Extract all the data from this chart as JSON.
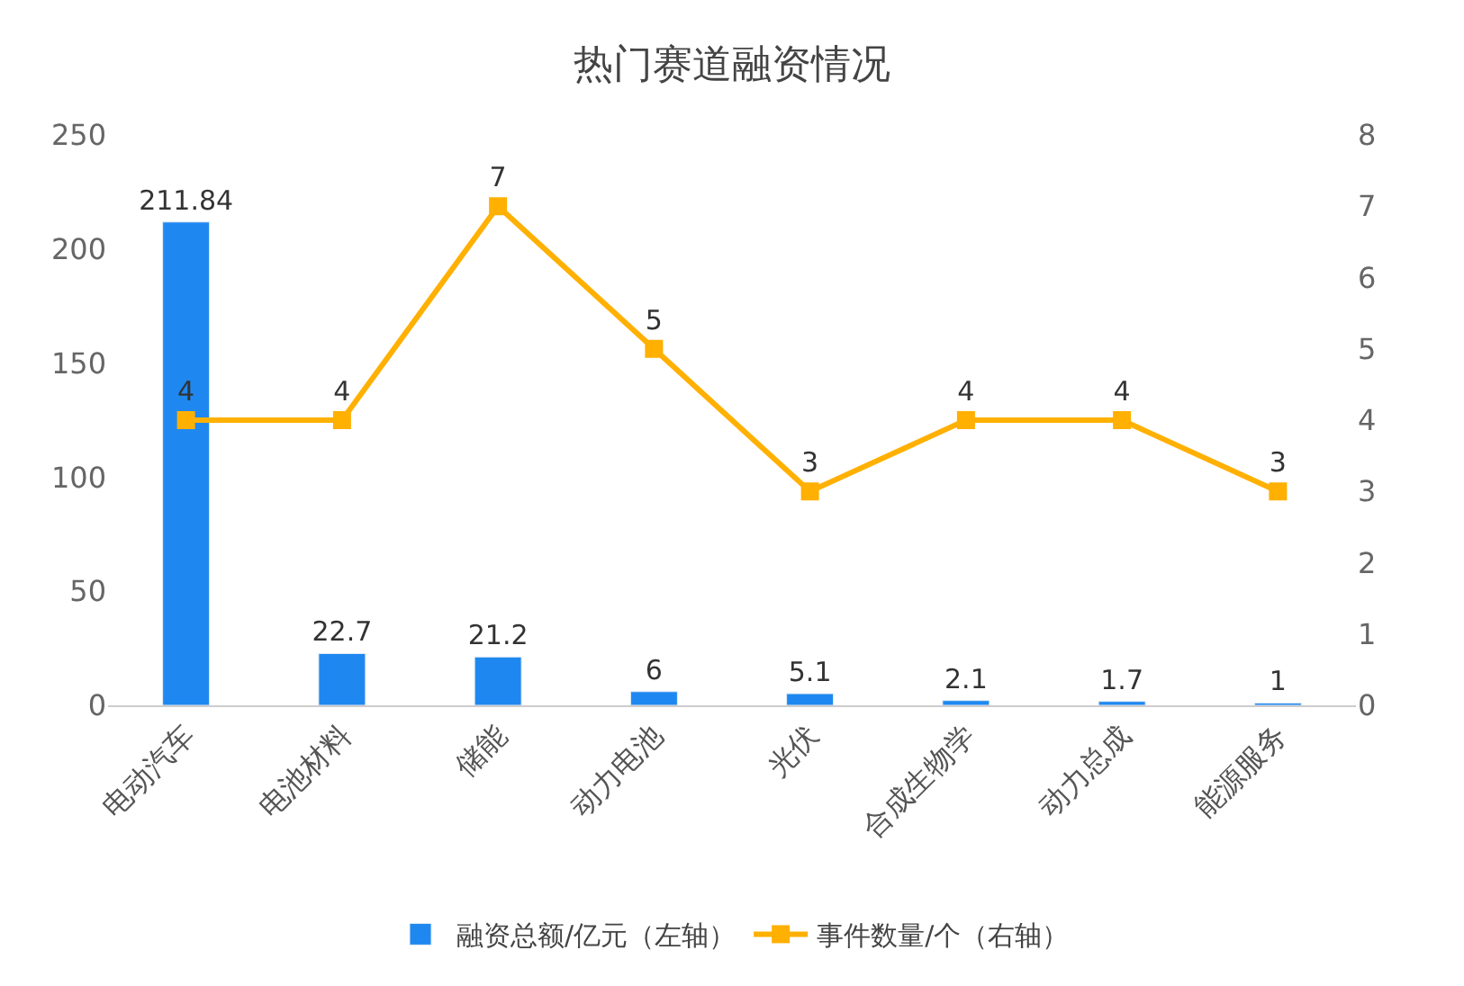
{
  "chart_data": {
    "type": "bar",
    "title": "热门赛道融资情况",
    "categories": [
      "电动汽车",
      "电池材料",
      "储能",
      "动力电池",
      "光伏",
      "合成生物学",
      "动力总成",
      "能源服务"
    ],
    "series": [
      {
        "name": "融资总额/亿元（左轴）",
        "color": "#1e88f0",
        "values": [
          211.84,
          22.7,
          21.2,
          6,
          5.1,
          2.1,
          1.7,
          1
        ]
      },
      {
        "name": "事件数量/个（右轴）",
        "type": "line",
        "axis": "y2",
        "color": "#ffb000",
        "values": [
          4,
          4,
          7,
          5,
          3,
          4,
          4,
          3
        ]
      }
    ],
    "ylim": [
      0,
      250
    ],
    "yticks": [
      0,
      50,
      100,
      150,
      200,
      250
    ],
    "y2lim": [
      0,
      8
    ],
    "y2ticks": [
      0,
      1,
      2,
      3,
      4,
      5,
      6,
      7,
      8
    ],
    "data_labels": true,
    "legend": "bottom",
    "marker": "square",
    "line_style": "solid"
  }
}
